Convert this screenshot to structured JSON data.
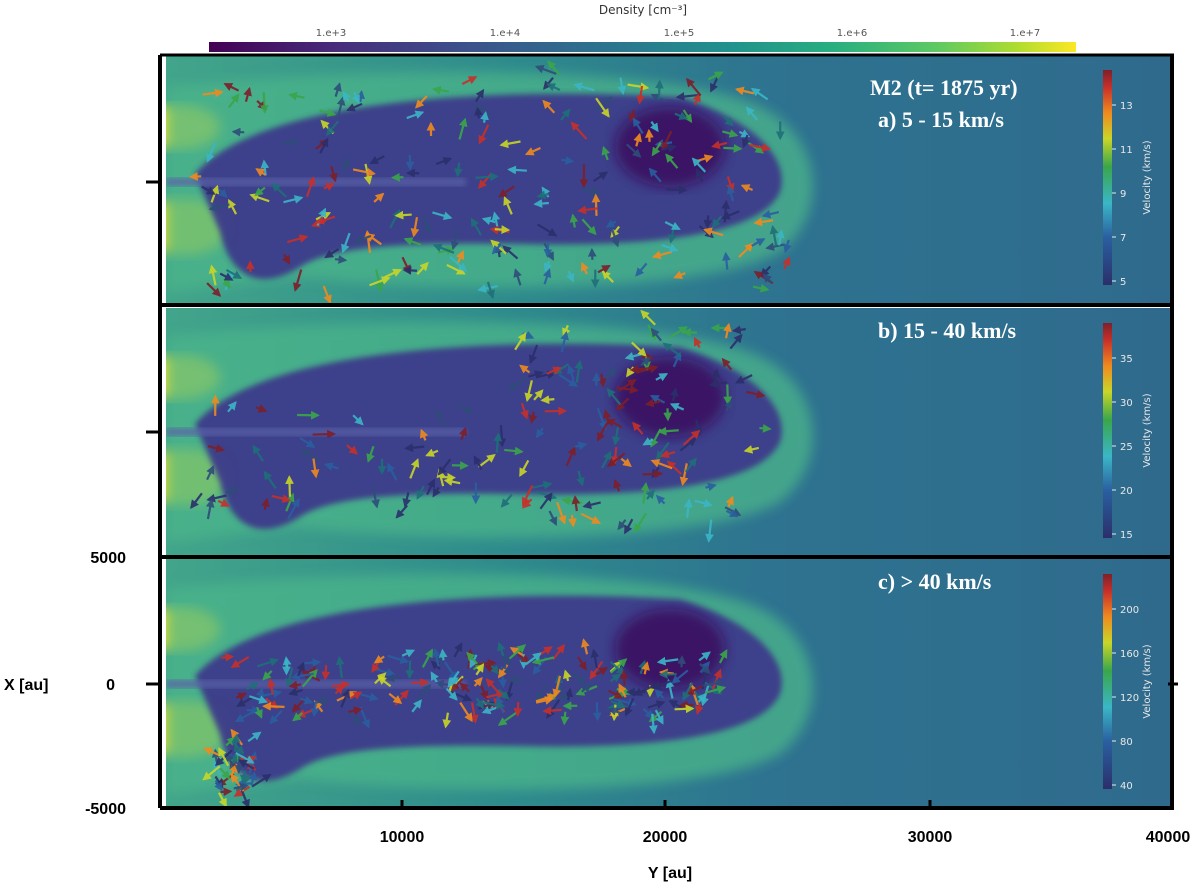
{
  "colors": {
    "background_plasma": "#2f6f8e",
    "low_density": "#3b1d6e",
    "mid_density": "#2a9d8c",
    "high_density": "#f4e32a"
  },
  "density_colorbar": {
    "title": "Density [cm⁻³]",
    "ticks": [
      "1.e+3",
      "1.e+4",
      "1.e+5",
      "1.e+6",
      "1.e+7"
    ]
  },
  "panels": [
    {
      "id": "a",
      "title_line1": "M2  (t= 1875 yr)",
      "title_line2": "a) 5 - 15 km/s",
      "velocity_title": "Velocity  (km/s)",
      "velocity_ticks": [
        "13",
        "11",
        "9",
        "7",
        "5"
      ],
      "velocity_range": [
        5,
        15
      ]
    },
    {
      "id": "b",
      "title_line1": "",
      "title_line2": "b) 15 - 40 km/s",
      "velocity_title": "Velocity  (km/s)",
      "velocity_ticks": [
        "35",
        "30",
        "25",
        "20",
        "15"
      ],
      "velocity_range": [
        15,
        40
      ]
    },
    {
      "id": "c",
      "title_line1": "",
      "title_line2": "c) > 40 km/s",
      "velocity_title": "Velocity  (km/s)",
      "velocity_ticks": [
        "200",
        "160",
        "120",
        "80",
        "40"
      ],
      "velocity_range": [
        40,
        200
      ]
    }
  ],
  "axes": {
    "xlabel": "Y [au]",
    "ylabel": "X [au]",
    "x_ticks": [
      "10000",
      "20000",
      "30000",
      "40000"
    ],
    "y_ticks": [
      "5000",
      "0",
      "-5000"
    ]
  }
}
